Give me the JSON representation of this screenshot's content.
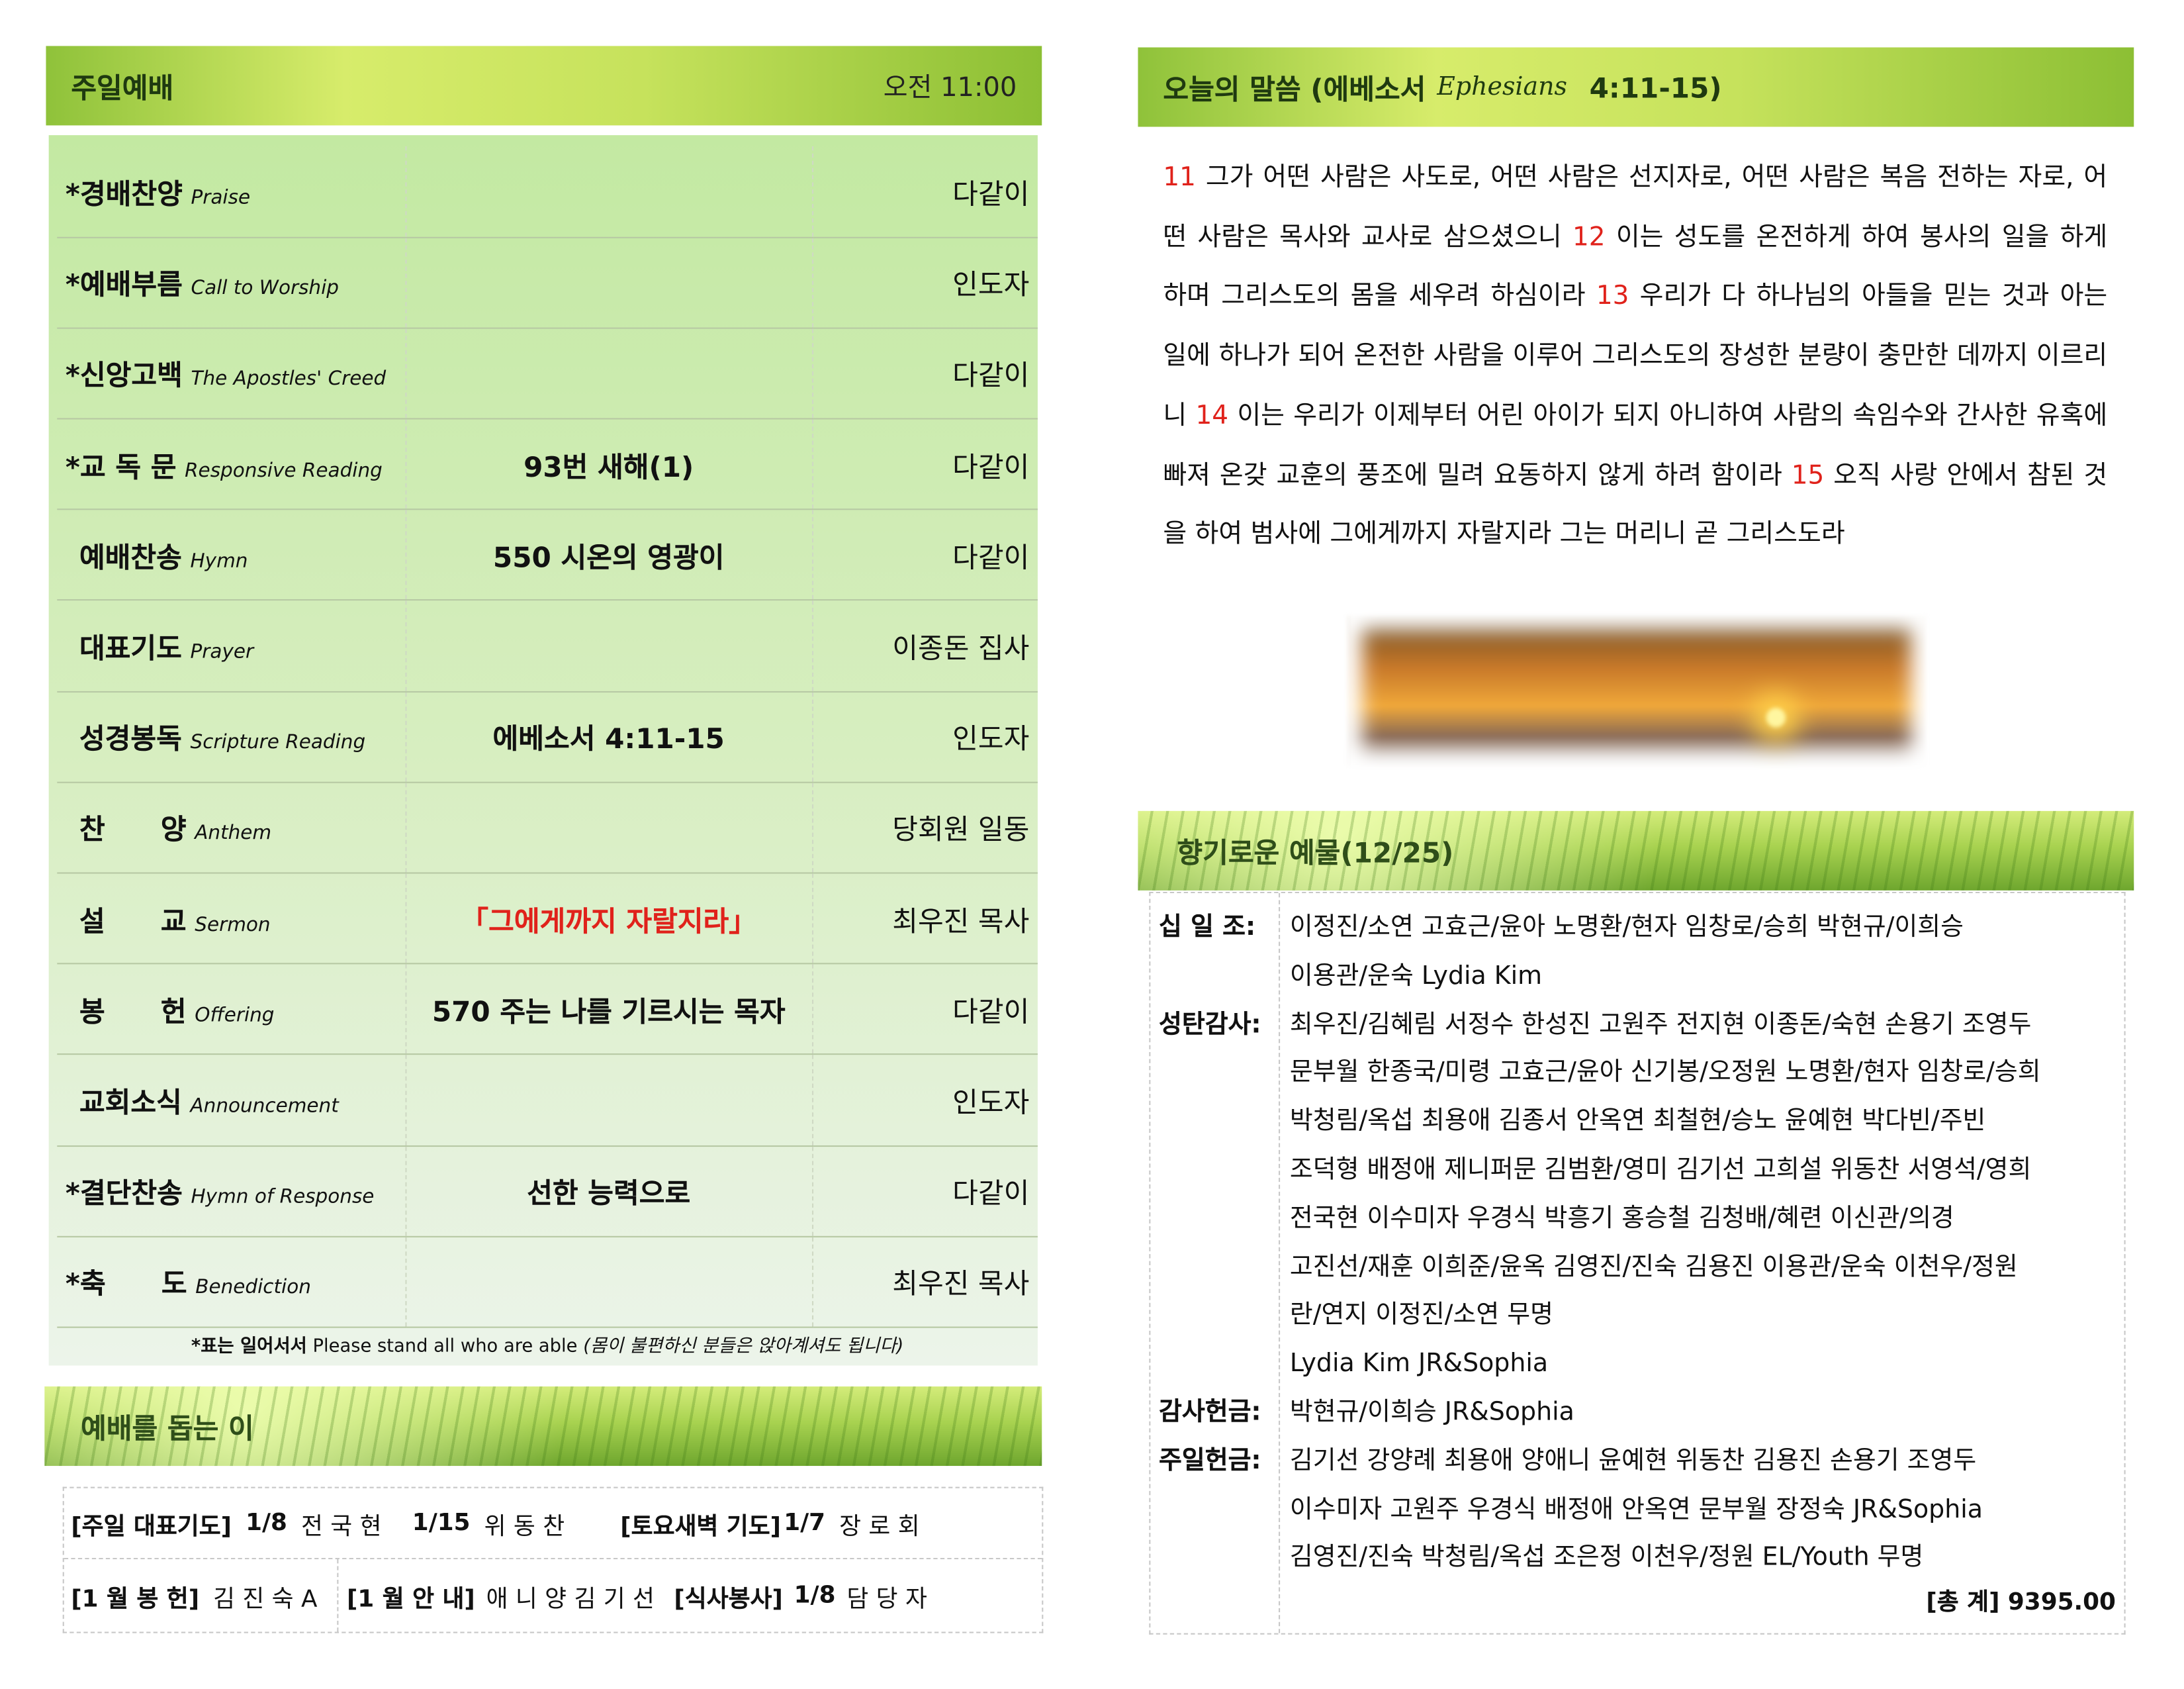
{
  "worship": {
    "title": "주일예배",
    "time": "오전 11:00",
    "rows": [
      {
        "star": "*",
        "ko": "경배찬양",
        "en": "Praise",
        "mid": "",
        "right": "다같이"
      },
      {
        "star": "*",
        "ko": "예배부름",
        "en": "Call to Worship",
        "mid": "",
        "right": "인도자"
      },
      {
        "star": "*",
        "ko": "신앙고백",
        "en": "The Apostles' Creed",
        "mid": "",
        "right": "다같이"
      },
      {
        "star": "*",
        "ko": "교 독 문",
        "en": "Responsive Reading",
        "mid": "93번 새해(1)",
        "right": "다같이"
      },
      {
        "star": "",
        "ko": "예배찬송",
        "en": "Hymn",
        "mid": "550 시온의 영광이",
        "right": "다같이"
      },
      {
        "star": "",
        "ko": "대표기도",
        "en": "Prayer",
        "mid": "",
        "right": "이종돈 집사"
      },
      {
        "star": "",
        "ko": "성경봉독",
        "en": "Scripture Reading",
        "mid": "에베소서 4:11-15",
        "right": "인도자"
      },
      {
        "star": "",
        "ko": "찬　　양",
        "en": "Anthem",
        "mid": "",
        "right": "당회원 일동"
      },
      {
        "star": "",
        "ko": "설　　교",
        "en": "Sermon",
        "mid": "「그에게까지 자랄지라」",
        "right": "최우진 목사"
      },
      {
        "star": "",
        "ko": "봉　　헌",
        "en": "Offering",
        "mid": "570 주는 나를 기르시는 목자",
        "right": "다같이"
      },
      {
        "star": "",
        "ko": "교회소식",
        "en": "Announcement",
        "mid": "",
        "right": "인도자"
      },
      {
        "star": "*",
        "ko": "결단찬송",
        "en": "Hymn of Response",
        "mid": "선한 능력으로",
        "right": "다같이"
      },
      {
        "star": "*",
        "ko": "축　　도",
        "en": "Benediction",
        "mid": "",
        "right": "최우진 목사"
      }
    ],
    "note_bold": "*표는 일어서서",
    "note_en": "Please stand all who are able",
    "note_italic": "(몸이 불편하신 분들은 앉아계셔도 됩니다)"
  },
  "helpers": {
    "title": "예배를 돕는 이",
    "row1": [
      {
        "label": "[주일 대표기도]",
        "val": "1/8",
        "name": "전 국 현"
      },
      {
        "val": "1/15",
        "name": "위 동 찬"
      },
      {
        "label": "[토요새벽 기도]",
        "val": "1/7",
        "name": "장 로 회"
      }
    ],
    "row2": [
      {
        "label": "[1 월 봉 헌]",
        "name": "김 진 숙 A"
      },
      {
        "label": "[1 월 안 내]",
        "name": "애 니 양  김 기 선"
      },
      {
        "label": "[식사봉사]",
        "val": "1/8",
        "name": "담 당 자"
      }
    ]
  },
  "scripture": {
    "title": "오늘의 말씀 (에베소서",
    "title_en": "Ephesians",
    "ref": "4:11-15)",
    "segments": [
      {
        "verse": "11",
        "text": " 그가 어떤 사람은 사도로, 어떤 사람은 선지자로, 어떤 사람은 복음 전하는 자로, 어떤 사람은 목사와 교사로 삼으셨으니 "
      },
      {
        "verse": "12",
        "text": " 이는 성도를 온전하게 하여 봉사의 일을 하게 하며 그리스도의 몸을 세우려 하심이라 "
      },
      {
        "verse": "13",
        "text": " 우리가 다 하나님의 아들을 믿는 것과 아는 일에 하나가 되어 온전한 사람을 이루어 그리스도의 장성한 분량이 충만한 데까지 이르리니 "
      },
      {
        "verse": "14",
        "text": " 이는 우리가 이제부터 어린 아이가 되지 아니하여 사람의 속임수와 간사한 유혹에 빠져 온갖 교훈의 풍조에 밀려 요동하지 않게 하려 함이라 "
      },
      {
        "verse": "15",
        "text": " 오직 사랑 안에서 참된 것을 하여 범사에 그에게까지 자랄지라 그는 머리니 곧 그리스도라"
      }
    ]
  },
  "offering": {
    "title": "향기로운 예물(12/25)",
    "groups": [
      {
        "label": "십 일 조:",
        "lines": [
          "이정진/소연 고효근/윤아 노명환/현자 임창로/승희 박현규/이희승",
          "이용관/운숙 Lydia Kim"
        ]
      },
      {
        "label": "성탄감사:",
        "lines": [
          "최우진/김혜림 서정수 한성진 고원주 전지현 이종돈/숙현 손용기 조영두",
          "문부월 한종국/미령 고효근/윤아 신기봉/오정원 노명환/현자 임창로/승희",
          "박청림/옥섭 최용애 김종서 안옥연 최철현/승노 윤예현 박다빈/주빈",
          "조덕형 배정애 제니퍼문 김범환/영미 김기선 고희설 위동찬 서영석/영희",
          "전국현 이수미자 우경식 박흥기 홍승철 김청배/혜련 이신관/의경",
          "고진선/재훈 이희준/윤옥 김영진/진숙 김용진 이용관/운숙 이천우/정원",
          "란/연지 이정진/소연 무명",
          "Lydia Kim JR&Sophia"
        ]
      },
      {
        "label": "감사헌금:",
        "lines": [
          "박현규/이희승 JR&Sophia"
        ]
      },
      {
        "label": "주일헌금:",
        "lines": [
          "김기선 강양례 최용애 양애니 윤예현 위동찬 김용진 손용기 조영두",
          "이수미자 고원주 우경식 배정애 안옥연 문부월 장정숙 JR&Sophia",
          "김영진/진숙 박청림/옥섭 조은정 이천우/정원 EL/Youth 무명"
        ]
      }
    ],
    "total_label": "[총 계]",
    "total": "9395.00"
  },
  "colors": {
    "header_green": "#a8d04a",
    "table_green": "#c9eaa8",
    "verse_red": "#e0221b",
    "sermon_red": "#e0221b"
  }
}
